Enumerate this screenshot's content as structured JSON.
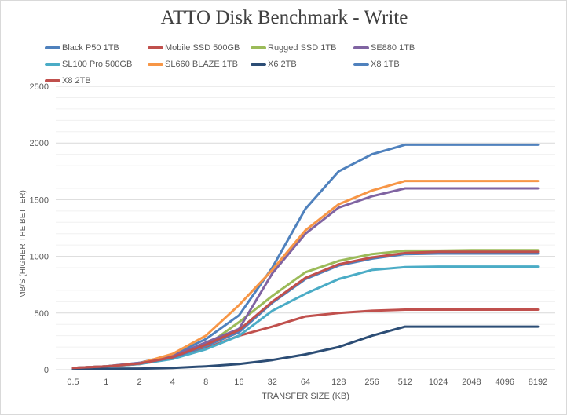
{
  "chart_data": {
    "type": "line",
    "title": "ATTO Disk Benchmark - Write",
    "xlabel": "TRANSFER SIZE (KB)",
    "ylabel": "MB/S (HIGHER THE BETTER)",
    "ylim": [
      0,
      2500
    ],
    "yticks": [
      "0",
      "500",
      "1000",
      "1500",
      "2000",
      "2500"
    ],
    "categories": [
      "0.5",
      "1",
      "2",
      "4",
      "8",
      "16",
      "32",
      "64",
      "128",
      "256",
      "512",
      "1024",
      "2048",
      "4096",
      "8192"
    ],
    "grid": true,
    "legend_position": "top",
    "series": [
      {
        "name": "Black P50 1TB",
        "color": "#4f81bd",
        "values": [
          15,
          30,
          60,
          130,
          270,
          480,
          900,
          1420,
          1750,
          1900,
          1985,
          1985,
          1985,
          1985,
          1985
        ]
      },
      {
        "name": "Mobile SSD 500GB",
        "color": "#c0504d",
        "values": [
          15,
          30,
          50,
          100,
          190,
          300,
          380,
          470,
          500,
          520,
          530,
          530,
          530,
          530,
          530
        ]
      },
      {
        "name": "Rugged SSD 1TB",
        "color": "#9bbb59",
        "values": [
          15,
          30,
          55,
          110,
          210,
          420,
          650,
          860,
          960,
          1020,
          1050,
          1050,
          1055,
          1055,
          1055
        ]
      },
      {
        "name": "SE880 1TB",
        "color": "#8064a2",
        "values": [
          15,
          30,
          60,
          120,
          240,
          360,
          850,
          1200,
          1430,
          1530,
          1600,
          1600,
          1600,
          1600,
          1600
        ]
      },
      {
        "name": "SL100 Pro 500GB",
        "color": "#4bacc6",
        "values": [
          12,
          28,
          50,
          95,
          180,
          300,
          520,
          670,
          800,
          880,
          905,
          910,
          910,
          910,
          910
        ]
      },
      {
        "name": "SL660 BLAZE 1TB",
        "color": "#f79646",
        "values": [
          15,
          30,
          55,
          140,
          300,
          570,
          880,
          1230,
          1460,
          1580,
          1665,
          1665,
          1665,
          1665,
          1665
        ]
      },
      {
        "name": "X6 2TB",
        "color": "#2c4d75",
        "values": [
          5,
          8,
          10,
          15,
          30,
          50,
          85,
          135,
          200,
          300,
          380,
          380,
          380,
          380,
          380
        ]
      },
      {
        "name": "X8 1TB",
        "color": "#4f81bd",
        "values": [
          15,
          30,
          55,
          105,
          210,
          330,
          590,
          800,
          920,
          980,
          1020,
          1025,
          1025,
          1025,
          1025
        ]
      },
      {
        "name": "X8 2TB",
        "color": "#c0504d",
        "values": [
          15,
          30,
          55,
          110,
          220,
          350,
          600,
          810,
          930,
          990,
          1030,
          1040,
          1040,
          1040,
          1040
        ]
      }
    ]
  }
}
